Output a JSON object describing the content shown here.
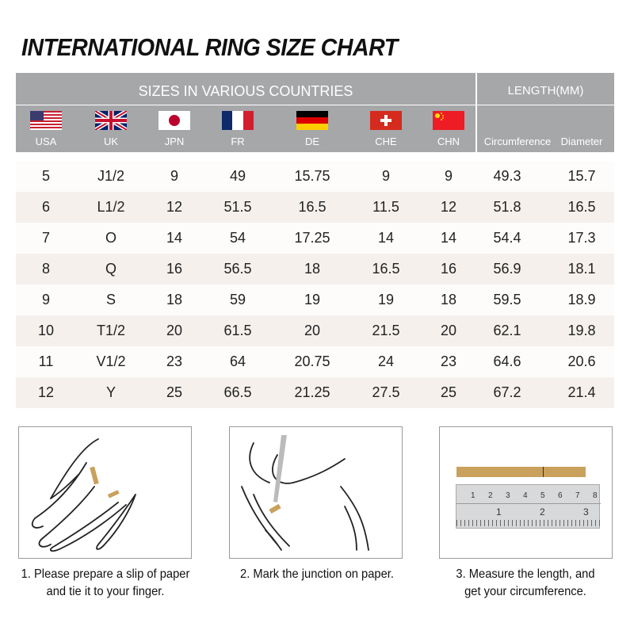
{
  "title": "INTERNATIONAL RING SIZE CHART",
  "header": {
    "sizes_label": "SIZES IN VARIOUS COUNTRIES",
    "length_label": "LENGTH(MM)",
    "countries": [
      {
        "label": "USA",
        "flag": "us-flag"
      },
      {
        "label": "UK",
        "flag": "uk-flag"
      },
      {
        "label": "JPN",
        "flag": "japan-flag"
      },
      {
        "label": "FR",
        "flag": "france-flag"
      },
      {
        "label": "DE",
        "flag": "germany-flag"
      },
      {
        "label": "CHE",
        "flag": "switzerland-flag"
      },
      {
        "label": "CHN",
        "flag": "china-flag"
      }
    ],
    "length_cols": [
      "Circumference",
      "Diameter"
    ]
  },
  "colors": {
    "header_bg": "#a6a7a9",
    "row_odd": "#fdfcfa",
    "row_even": "#f5f0ec",
    "paper_strip": "#c9a15c"
  },
  "rows": [
    [
      "5",
      "J1/2",
      "9",
      "49",
      "15.75",
      "9",
      "9",
      "49.3",
      "15.7"
    ],
    [
      "6",
      "L1/2",
      "12",
      "51.5",
      "16.5",
      "11.5",
      "12",
      "51.8",
      "16.5"
    ],
    [
      "7",
      "O",
      "14",
      "54",
      "17.25",
      "14",
      "14",
      "54.4",
      "17.3"
    ],
    [
      "8",
      "Q",
      "16",
      "56.5",
      "18",
      "16.5",
      "16",
      "56.9",
      "18.1"
    ],
    [
      "9",
      "S",
      "18",
      "59",
      "19",
      "19",
      "18",
      "59.5",
      "18.9"
    ],
    [
      "10",
      "T1/2",
      "20",
      "61.5",
      "20",
      "21.5",
      "20",
      "62.1",
      "19.8"
    ],
    [
      "11",
      "V1/2",
      "23",
      "64",
      "20.75",
      "24",
      "23",
      "64.6",
      "20.6"
    ],
    [
      "12",
      "Y",
      "25",
      "66.5",
      "21.25",
      "27.5",
      "25",
      "67.2",
      "21.4"
    ]
  ],
  "steps": [
    {
      "line1": "1. Please prepare a slip of paper",
      "line2": "and tie it to your finger."
    },
    {
      "line1": "2. Mark the junction on paper.",
      "line2": ""
    },
    {
      "line1": "3. Measure the length, and",
      "line2": "get your circumference."
    }
  ],
  "ruler": {
    "cm_ticks": [
      "1",
      "2",
      "3",
      "4",
      "5",
      "6",
      "7",
      "8"
    ],
    "inch_ticks": [
      "1",
      "2",
      "3"
    ]
  }
}
